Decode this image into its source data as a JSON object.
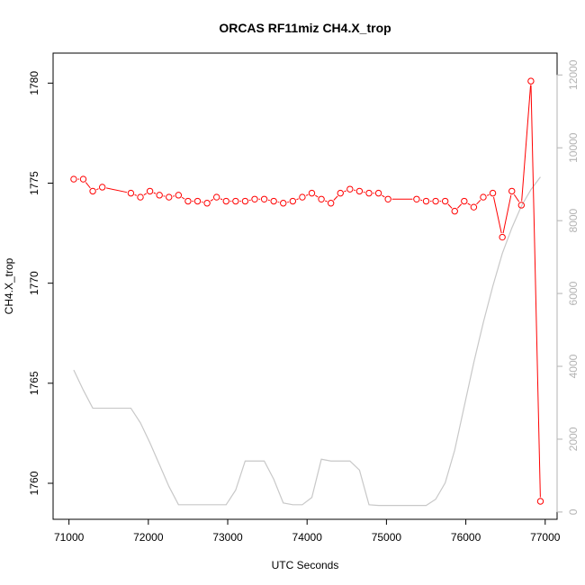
{
  "chart_data": {
    "type": "line",
    "title": "ORCAS RF11miz CH4.X_trop",
    "xlabel": "UTC Seconds",
    "ylabel": "CH4.X_trop",
    "xlim": [
      70800,
      77150
    ],
    "ylim": [
      1758.2,
      1781.5
    ],
    "y2lim": [
      -200,
      12600
    ],
    "x_ticks": [
      "71000",
      "72000",
      "73000",
      "74000",
      "75000",
      "76000",
      "77000"
    ],
    "y_ticks": [
      "1760",
      "1765",
      "1770",
      "1775",
      "1780"
    ],
    "y2_ticks": [
      "0",
      "2000",
      "4000",
      "6000",
      "8000",
      "10000",
      "12000"
    ],
    "colors": {
      "series": "#ff0000",
      "altitude": "#c8c8c8",
      "right_axis": "#b3b3b3"
    },
    "series": [
      {
        "axis": "left",
        "style": "line+circles",
        "x": [
          71060,
          71180,
          71300,
          71420,
          71780,
          71900,
          72020,
          72140,
          72260,
          72380,
          72500,
          72620,
          72740,
          72860,
          72980,
          73100,
          73220,
          73340,
          73460,
          73580,
          73700,
          73820,
          73940,
          74060,
          74180,
          74300,
          74420,
          74540,
          74660,
          74780,
          74900,
          75020,
          75380,
          75500,
          75620,
          75740,
          75860,
          75980,
          76100,
          76220,
          76340,
          76460,
          76580,
          76700,
          76820,
          76940
        ],
        "y": [
          1775.2,
          1775.2,
          1774.6,
          1774.8,
          1774.5,
          1774.3,
          1774.6,
          1774.4,
          1774.3,
          1774.4,
          1774.1,
          1774.1,
          1774.0,
          1774.3,
          1774.1,
          1774.1,
          1774.1,
          1774.2,
          1774.2,
          1774.1,
          1774.0,
          1774.1,
          1774.3,
          1774.5,
          1774.2,
          1774.0,
          1774.5,
          1774.7,
          1774.6,
          1774.5,
          1774.5,
          1774.2,
          1774.2,
          1774.1,
          1774.1,
          1774.1,
          1773.6,
          1774.1,
          1773.8,
          1774.3,
          1774.5,
          1772.3,
          1774.6,
          1773.9,
          1780.1,
          1759.1
        ]
      },
      {
        "axis": "right",
        "style": "line",
        "x": [
          71060,
          71180,
          71300,
          71420,
          71780,
          71900,
          72020,
          72140,
          72260,
          72380,
          72500,
          72620,
          72740,
          72860,
          72980,
          73100,
          73220,
          73340,
          73460,
          73580,
          73700,
          73820,
          73940,
          74060,
          74180,
          74300,
          74420,
          74540,
          74660,
          74780,
          74900,
          75020,
          75380,
          75500,
          75620,
          75740,
          75860,
          75980,
          76100,
          76220,
          76340,
          76460,
          76580,
          76700,
          76820,
          76940
        ],
        "y": [
          3900,
          3350,
          2850,
          2850,
          2850,
          2450,
          1900,
          1300,
          700,
          200,
          200,
          200,
          200,
          200,
          200,
          600,
          1400,
          1400,
          1400,
          900,
          250,
          200,
          200,
          400,
          1450,
          1400,
          1400,
          1400,
          1150,
          200,
          180,
          180,
          180,
          180,
          350,
          800,
          1700,
          2900,
          4100,
          5200,
          6200,
          7100,
          7800,
          8400,
          8850,
          9200
        ]
      }
    ]
  }
}
